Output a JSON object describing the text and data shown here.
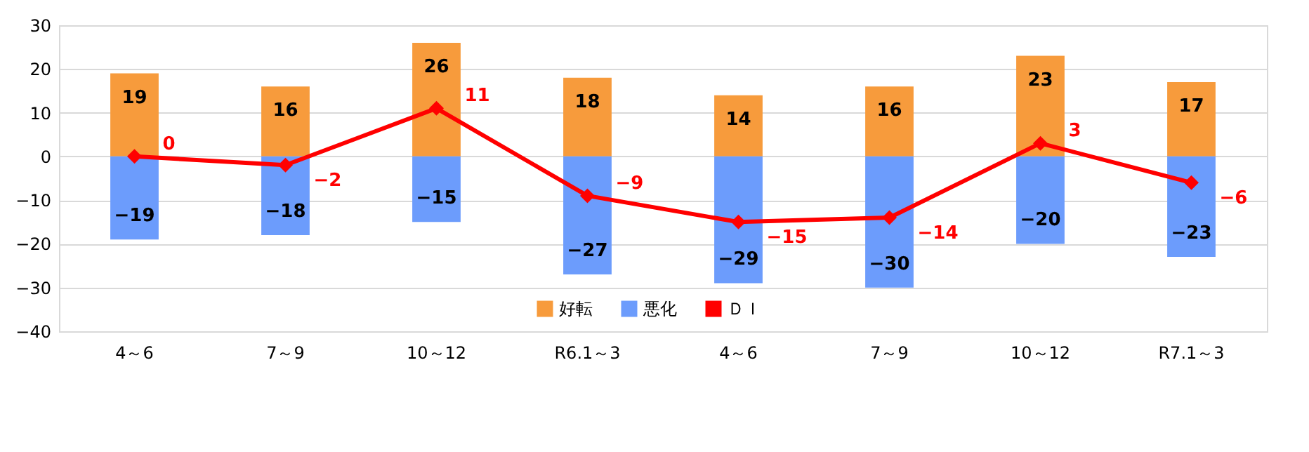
{
  "chart_data": {
    "type": "bar",
    "stacked": true,
    "categories": [
      "4～6",
      "7～9",
      "10～12",
      "R6.1～3",
      "4～6",
      "7～9",
      "10～12",
      "R7.1～3"
    ],
    "series": [
      {
        "name": "好転",
        "color": "#f79b3c",
        "values": [
          19,
          16,
          26,
          18,
          14,
          16,
          23,
          17
        ]
      },
      {
        "name": "悪化",
        "color": "#6c9cfc",
        "values": [
          -19,
          -18,
          -15,
          -27,
          -29,
          -30,
          -20,
          -23
        ]
      },
      {
        "name": "ＤＩ",
        "type": "line",
        "color": "#ff0000",
        "marker": "diamond",
        "values": [
          0,
          -2,
          11,
          -9,
          -15,
          -14,
          3,
          -6
        ]
      }
    ],
    "ylim": [
      -40,
      30
    ],
    "yticks": [
      -40,
      -30,
      -20,
      -10,
      0,
      10,
      20,
      30
    ],
    "grid": "y",
    "legend": "bottom",
    "data_labels": true
  }
}
